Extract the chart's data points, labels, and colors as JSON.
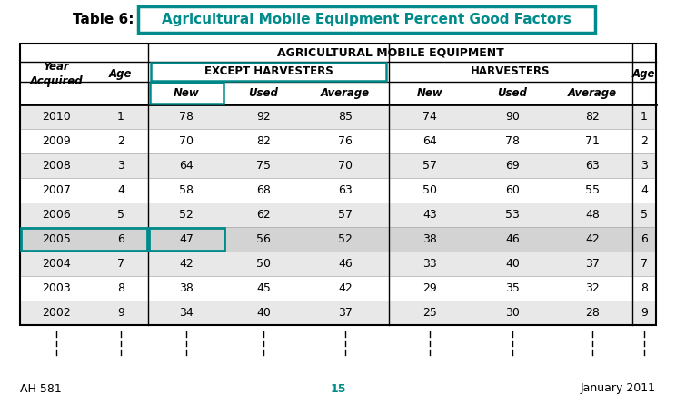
{
  "title_prefix": "Table 6:",
  "title_main": "Agricultural Mobile Equipment Percent Good Factors",
  "header_row1": "AGRICULTURAL MOBILE EQUIPMENT",
  "header_except": "EXCEPT HARVESTERS",
  "header_harv": "HARVESTERS",
  "rows": [
    [
      2010,
      1,
      78,
      92,
      85,
      74,
      90,
      82,
      1
    ],
    [
      2009,
      2,
      70,
      82,
      76,
      64,
      78,
      71,
      2
    ],
    [
      2008,
      3,
      64,
      75,
      70,
      57,
      69,
      63,
      3
    ],
    [
      2007,
      4,
      58,
      68,
      63,
      50,
      60,
      55,
      4
    ],
    [
      2006,
      5,
      52,
      62,
      57,
      43,
      53,
      48,
      5
    ],
    [
      2005,
      6,
      47,
      56,
      52,
      38,
      46,
      42,
      6
    ],
    [
      2004,
      7,
      42,
      50,
      46,
      33,
      40,
      37,
      7
    ],
    [
      2003,
      8,
      38,
      45,
      42,
      29,
      35,
      32,
      8
    ],
    [
      2002,
      9,
      34,
      40,
      37,
      25,
      30,
      28,
      9
    ]
  ],
  "highlighted_row": 5,
  "teal_color": "#008B8B",
  "highlight_bg": "#d3d3d3",
  "even_row_bg": "#e8e8e8",
  "footer_left": "AH 581",
  "footer_center": "15",
  "footer_right": "January 2011",
  "teal_footer": "#008B8B"
}
